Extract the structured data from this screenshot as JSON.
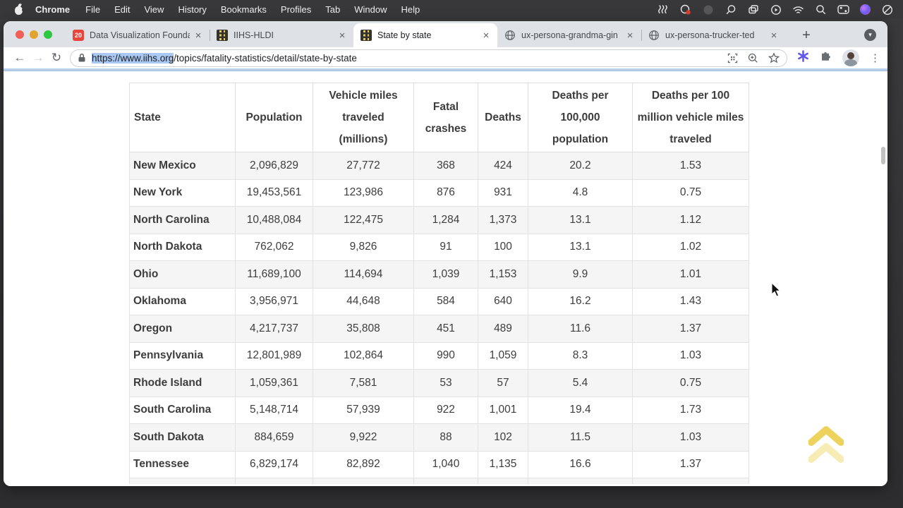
{
  "menubar": {
    "items": [
      "Chrome",
      "File",
      "Edit",
      "View",
      "History",
      "Bookmarks",
      "Profiles",
      "Tab",
      "Window",
      "Help"
    ],
    "status_icons": [
      "squiggle-icon",
      "creative-cloud-icon",
      "dim-circle-icon",
      "magnifier-icon",
      "copy-windows-icon",
      "play-circle-icon",
      "wifi-icon",
      "spotlight-search-icon",
      "control-center-icon",
      "colorful-app-icon",
      "do-not-disturb-icon"
    ]
  },
  "tabs": [
    {
      "title": "Data Visualization Founda",
      "favicon": "red-badge",
      "favicon_label": "20",
      "close": "×",
      "active": false
    },
    {
      "title": "IIHS-HLDI",
      "favicon": "iihs-road",
      "close": "×",
      "active": false
    },
    {
      "title": "State by state",
      "favicon": "iihs-road",
      "close": "×",
      "active": true
    },
    {
      "title": "ux-persona-grandma-gin",
      "favicon": "globe",
      "close": "×",
      "active": false
    },
    {
      "title": "ux-persona-trucker-ted",
      "favicon": "globe",
      "close": "×",
      "active": false
    }
  ],
  "tabstrip": {
    "new_tab_label": "+",
    "tab_search_label": "▾"
  },
  "toolbar": {
    "back_label": "←",
    "forward_label": "→",
    "reload_label": "↻",
    "url_selected": "https://www.iihs.org",
    "url_rest": "/topics/fatality-statistics/detail/state-by-state",
    "menu_dots": "⋮"
  },
  "table": {
    "column_keys": [
      "state",
      "population",
      "vmt",
      "fatal_crashes",
      "deaths",
      "deaths_per_100k",
      "deaths_per_100m_vmt"
    ],
    "headers": [
      "State",
      "Population",
      "Vehicle miles traveled (millions)",
      "Fatal crashes",
      "Deaths",
      "Deaths per 100,000 population",
      "Deaths per 100 million vehicle miles traveled"
    ],
    "rows": [
      {
        "state": "New Mexico",
        "population": "2,096,829",
        "vmt": "27,772",
        "fatal_crashes": "368",
        "deaths": "424",
        "deaths_per_100k": "20.2",
        "deaths_per_100m_vmt": "1.53"
      },
      {
        "state": "New York",
        "population": "19,453,561",
        "vmt": "123,986",
        "fatal_crashes": "876",
        "deaths": "931",
        "deaths_per_100k": "4.8",
        "deaths_per_100m_vmt": "0.75"
      },
      {
        "state": "North Carolina",
        "population": "10,488,084",
        "vmt": "122,475",
        "fatal_crashes": "1,284",
        "deaths": "1,373",
        "deaths_per_100k": "13.1",
        "deaths_per_100m_vmt": "1.12"
      },
      {
        "state": "North Dakota",
        "population": "762,062",
        "vmt": "9,826",
        "fatal_crashes": "91",
        "deaths": "100",
        "deaths_per_100k": "13.1",
        "deaths_per_100m_vmt": "1.02"
      },
      {
        "state": "Ohio",
        "population": "11,689,100",
        "vmt": "114,694",
        "fatal_crashes": "1,039",
        "deaths": "1,153",
        "deaths_per_100k": "9.9",
        "deaths_per_100m_vmt": "1.01"
      },
      {
        "state": "Oklahoma",
        "population": "3,956,971",
        "vmt": "44,648",
        "fatal_crashes": "584",
        "deaths": "640",
        "deaths_per_100k": "16.2",
        "deaths_per_100m_vmt": "1.43"
      },
      {
        "state": "Oregon",
        "population": "4,217,737",
        "vmt": "35,808",
        "fatal_crashes": "451",
        "deaths": "489",
        "deaths_per_100k": "11.6",
        "deaths_per_100m_vmt": "1.37"
      },
      {
        "state": "Pennsylvania",
        "population": "12,801,989",
        "vmt": "102,864",
        "fatal_crashes": "990",
        "deaths": "1,059",
        "deaths_per_100k": "8.3",
        "deaths_per_100m_vmt": "1.03"
      },
      {
        "state": "Rhode Island",
        "population": "1,059,361",
        "vmt": "7,581",
        "fatal_crashes": "53",
        "deaths": "57",
        "deaths_per_100k": "5.4",
        "deaths_per_100m_vmt": "0.75"
      },
      {
        "state": "South Carolina",
        "population": "5,148,714",
        "vmt": "57,939",
        "fatal_crashes": "922",
        "deaths": "1,001",
        "deaths_per_100k": "19.4",
        "deaths_per_100m_vmt": "1.73"
      },
      {
        "state": "South Dakota",
        "population": "884,659",
        "vmt": "9,922",
        "fatal_crashes": "88",
        "deaths": "102",
        "deaths_per_100k": "11.5",
        "deaths_per_100m_vmt": "1.03"
      },
      {
        "state": "Tennessee",
        "population": "6,829,174",
        "vmt": "82,892",
        "fatal_crashes": "1,040",
        "deaths": "1,135",
        "deaths_per_100k": "16.6",
        "deaths_per_100m_vmt": "1.37"
      }
    ]
  },
  "page": {
    "back_to_top_icon": "chevrons-up"
  },
  "colors": {
    "accent_selection": "#a9c9f4",
    "iihs_yellow": "#eec83d",
    "back_to_top_yellow": "#eed35e",
    "stripe": "#f5f5f6"
  }
}
